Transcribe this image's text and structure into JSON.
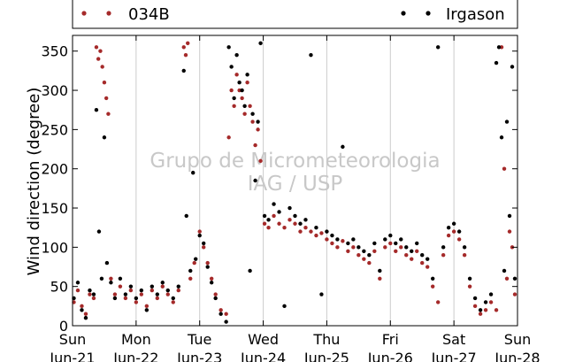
{
  "chart_data": {
    "type": "scatter",
    "title": "",
    "xlabel": "",
    "ylabel": "Wind direction (degree)",
    "ylim": [
      0,
      370
    ],
    "yticks": [
      0,
      50,
      100,
      150,
      200,
      250,
      300,
      350
    ],
    "xlim": [
      "2015-06-21 00:00",
      "2015-06-28 00:00"
    ],
    "xticks": [
      {
        "day": "Sun",
        "date": "Jun-21"
      },
      {
        "day": "Mon",
        "date": "Jun-22"
      },
      {
        "day": "Tue",
        "date": "Jun-23"
      },
      {
        "day": "Wed",
        "date": "Jun-24"
      },
      {
        "day": "Thu",
        "date": "Jun-25"
      },
      {
        "day": "Fri",
        "date": "Jun-26"
      },
      {
        "day": "Sat",
        "date": "Jun-27"
      },
      {
        "day": "Sun",
        "date": "Jun-28"
      }
    ],
    "grid": "vertical",
    "legend": "top",
    "watermark": [
      "Grupo de Micrometeorologia",
      "IAG / USP"
    ],
    "series": [
      {
        "name": "034B",
        "color": "#a52a2a",
        "marker": "dot",
        "points": [
          [
            "2015-06-21 00:30",
            30
          ],
          [
            "2015-06-21 02:00",
            45
          ],
          [
            "2015-06-21 03:30",
            25
          ],
          [
            "2015-06-21 05:00",
            15
          ],
          [
            "2015-06-21 06:30",
            40
          ],
          [
            "2015-06-21 08:00",
            35
          ],
          [
            "2015-06-21 09:00",
            355
          ],
          [
            "2015-06-21 09:45",
            340
          ],
          [
            "2015-06-21 10:30",
            350
          ],
          [
            "2015-06-21 11:15",
            330
          ],
          [
            "2015-06-21 12:00",
            310
          ],
          [
            "2015-06-21 12:45",
            290
          ],
          [
            "2015-06-21 13:30",
            270
          ],
          [
            "2015-06-21 14:30",
            60
          ],
          [
            "2015-06-21 16:00",
            40
          ],
          [
            "2015-06-21 18:00",
            50
          ],
          [
            "2015-06-21 20:00",
            35
          ],
          [
            "2015-06-21 22:00",
            45
          ],
          [
            "2015-06-22 00:00",
            30
          ],
          [
            "2015-06-22 02:00",
            40
          ],
          [
            "2015-06-22 04:00",
            25
          ],
          [
            "2015-06-22 06:00",
            45
          ],
          [
            "2015-06-22 08:00",
            35
          ],
          [
            "2015-06-22 10:00",
            50
          ],
          [
            "2015-06-22 12:00",
            40
          ],
          [
            "2015-06-22 14:00",
            30
          ],
          [
            "2015-06-22 16:00",
            45
          ],
          [
            "2015-06-22 18:00",
            355
          ],
          [
            "2015-06-22 18:45",
            345
          ],
          [
            "2015-06-22 19:30",
            360
          ],
          [
            "2015-06-22 20:30",
            60
          ],
          [
            "2015-06-22 22:00",
            80
          ],
          [
            "2015-06-23 00:00",
            120
          ],
          [
            "2015-06-23 01:30",
            100
          ],
          [
            "2015-06-23 03:00",
            80
          ],
          [
            "2015-06-23 04:30",
            60
          ],
          [
            "2015-06-23 06:00",
            40
          ],
          [
            "2015-06-23 08:00",
            20
          ],
          [
            "2015-06-23 10:00",
            15
          ],
          [
            "2015-06-23 11:00",
            240
          ],
          [
            "2015-06-23 12:00",
            300
          ],
          [
            "2015-06-23 13:00",
            280
          ],
          [
            "2015-06-23 14:00",
            320
          ],
          [
            "2015-06-23 15:00",
            300
          ],
          [
            "2015-06-23 16:00",
            290
          ],
          [
            "2015-06-23 17:00",
            270
          ],
          [
            "2015-06-23 18:00",
            310
          ],
          [
            "2015-06-23 19:00",
            280
          ],
          [
            "2015-06-23 20:00",
            260
          ],
          [
            "2015-06-23 21:00",
            230
          ],
          [
            "2015-06-23 22:00",
            250
          ],
          [
            "2015-06-23 23:00",
            210
          ],
          [
            "2015-06-24 00:30",
            130
          ],
          [
            "2015-06-24 02:00",
            125
          ],
          [
            "2015-06-24 04:00",
            140
          ],
          [
            "2015-06-24 06:00",
            130
          ],
          [
            "2015-06-24 08:00",
            125
          ],
          [
            "2015-06-24 10:00",
            135
          ],
          [
            "2015-06-24 12:00",
            130
          ],
          [
            "2015-06-24 14:00",
            120
          ],
          [
            "2015-06-24 16:00",
            125
          ],
          [
            "2015-06-24 18:00",
            120
          ],
          [
            "2015-06-24 20:00",
            115
          ],
          [
            "2015-06-24 22:00",
            118
          ],
          [
            "2015-06-25 00:00",
            110
          ],
          [
            "2015-06-25 02:00",
            105
          ],
          [
            "2015-06-25 04:00",
            100
          ],
          [
            "2015-06-25 06:00",
            108
          ],
          [
            "2015-06-25 08:00",
            95
          ],
          [
            "2015-06-25 10:00",
            100
          ],
          [
            "2015-06-25 12:00",
            90
          ],
          [
            "2015-06-25 14:00",
            85
          ],
          [
            "2015-06-25 16:00",
            80
          ],
          [
            "2015-06-25 18:00",
            95
          ],
          [
            "2015-06-25 20:00",
            60
          ],
          [
            "2015-06-25 22:00",
            100
          ],
          [
            "2015-06-26 00:00",
            105
          ],
          [
            "2015-06-26 02:00",
            95
          ],
          [
            "2015-06-26 04:00",
            100
          ],
          [
            "2015-06-26 06:00",
            90
          ],
          [
            "2015-06-26 08:00",
            85
          ],
          [
            "2015-06-26 10:00",
            95
          ],
          [
            "2015-06-26 12:00",
            80
          ],
          [
            "2015-06-26 14:00",
            75
          ],
          [
            "2015-06-26 16:00",
            50
          ],
          [
            "2015-06-26 18:00",
            30
          ],
          [
            "2015-06-26 20:00",
            90
          ],
          [
            "2015-06-26 22:00",
            115
          ],
          [
            "2015-06-27 00:00",
            120
          ],
          [
            "2015-06-27 02:00",
            110
          ],
          [
            "2015-06-27 04:00",
            90
          ],
          [
            "2015-06-27 06:00",
            50
          ],
          [
            "2015-06-27 08:00",
            25
          ],
          [
            "2015-06-27 10:00",
            15
          ],
          [
            "2015-06-27 12:00",
            20
          ],
          [
            "2015-06-27 14:00",
            30
          ],
          [
            "2015-06-27 16:00",
            20
          ],
          [
            "2015-06-27 18:00",
            355
          ],
          [
            "2015-06-27 19:00",
            200
          ],
          [
            "2015-06-27 20:00",
            60
          ],
          [
            "2015-06-27 21:00",
            120
          ],
          [
            "2015-06-27 22:00",
            100
          ],
          [
            "2015-06-27 23:00",
            40
          ]
        ]
      },
      {
        "name": "Irgason",
        "color": "#000000",
        "marker": "dot",
        "points": [
          [
            "2015-06-21 00:30",
            35
          ],
          [
            "2015-06-21 02:00",
            55
          ],
          [
            "2015-06-21 03:30",
            20
          ],
          [
            "2015-06-21 05:00",
            10
          ],
          [
            "2015-06-21 06:30",
            45
          ],
          [
            "2015-06-21 08:00",
            40
          ],
          [
            "2015-06-21 09:00",
            275
          ],
          [
            "2015-06-21 10:00",
            120
          ],
          [
            "2015-06-21 11:00",
            60
          ],
          [
            "2015-06-21 12:00",
            240
          ],
          [
            "2015-06-21 13:00",
            80
          ],
          [
            "2015-06-21 14:30",
            55
          ],
          [
            "2015-06-21 16:00",
            35
          ],
          [
            "2015-06-21 18:00",
            60
          ],
          [
            "2015-06-21 20:00",
            40
          ],
          [
            "2015-06-21 22:00",
            50
          ],
          [
            "2015-06-22 00:00",
            35
          ],
          [
            "2015-06-22 02:00",
            45
          ],
          [
            "2015-06-22 04:00",
            20
          ],
          [
            "2015-06-22 06:00",
            50
          ],
          [
            "2015-06-22 08:00",
            40
          ],
          [
            "2015-06-22 10:00",
            55
          ],
          [
            "2015-06-22 12:00",
            45
          ],
          [
            "2015-06-22 14:00",
            35
          ],
          [
            "2015-06-22 16:00",
            50
          ],
          [
            "2015-06-22 18:00",
            325
          ],
          [
            "2015-06-22 19:00",
            140
          ],
          [
            "2015-06-22 20:30",
            70
          ],
          [
            "2015-06-22 21:30",
            195
          ],
          [
            "2015-06-22 22:30",
            85
          ],
          [
            "2015-06-23 00:00",
            115
          ],
          [
            "2015-06-23 01:30",
            105
          ],
          [
            "2015-06-23 03:00",
            75
          ],
          [
            "2015-06-23 04:30",
            55
          ],
          [
            "2015-06-23 06:00",
            35
          ],
          [
            "2015-06-23 08:00",
            15
          ],
          [
            "2015-06-23 10:00",
            5
          ],
          [
            "2015-06-23 11:00",
            355
          ],
          [
            "2015-06-23 12:00",
            330
          ],
          [
            "2015-06-23 13:00",
            290
          ],
          [
            "2015-06-23 14:00",
            345
          ],
          [
            "2015-06-23 15:00",
            310
          ],
          [
            "2015-06-23 16:00",
            300
          ],
          [
            "2015-06-23 17:00",
            280
          ],
          [
            "2015-06-23 18:00",
            320
          ],
          [
            "2015-06-23 19:00",
            70
          ],
          [
            "2015-06-23 20:00",
            270
          ],
          [
            "2015-06-23 21:00",
            185
          ],
          [
            "2015-06-23 22:00",
            260
          ],
          [
            "2015-06-23 23:00",
            360
          ],
          [
            "2015-06-24 00:30",
            140
          ],
          [
            "2015-06-24 02:00",
            135
          ],
          [
            "2015-06-24 04:00",
            155
          ],
          [
            "2015-06-24 06:00",
            145
          ],
          [
            "2015-06-24 08:00",
            25
          ],
          [
            "2015-06-24 10:00",
            150
          ],
          [
            "2015-06-24 12:00",
            140
          ],
          [
            "2015-06-24 14:00",
            130
          ],
          [
            "2015-06-24 16:00",
            135
          ],
          [
            "2015-06-24 18:00",
            345
          ],
          [
            "2015-06-24 20:00",
            125
          ],
          [
            "2015-06-24 22:00",
            40
          ],
          [
            "2015-06-25 00:00",
            120
          ],
          [
            "2015-06-25 02:00",
            115
          ],
          [
            "2015-06-25 04:00",
            110
          ],
          [
            "2015-06-25 06:00",
            228
          ],
          [
            "2015-06-25 08:00",
            105
          ],
          [
            "2015-06-25 10:00",
            110
          ],
          [
            "2015-06-25 12:00",
            100
          ],
          [
            "2015-06-25 14:00",
            95
          ],
          [
            "2015-06-25 16:00",
            90
          ],
          [
            "2015-06-25 18:00",
            105
          ],
          [
            "2015-06-25 20:00",
            70
          ],
          [
            "2015-06-25 22:00",
            110
          ],
          [
            "2015-06-26 00:00",
            115
          ],
          [
            "2015-06-26 02:00",
            105
          ],
          [
            "2015-06-26 04:00",
            110
          ],
          [
            "2015-06-26 06:00",
            100
          ],
          [
            "2015-06-26 08:00",
            95
          ],
          [
            "2015-06-26 10:00",
            105
          ],
          [
            "2015-06-26 12:00",
            90
          ],
          [
            "2015-06-26 14:00",
            85
          ],
          [
            "2015-06-26 16:00",
            60
          ],
          [
            "2015-06-26 18:00",
            355
          ],
          [
            "2015-06-26 20:00",
            100
          ],
          [
            "2015-06-26 22:00",
            125
          ],
          [
            "2015-06-27 00:00",
            130
          ],
          [
            "2015-06-27 02:00",
            120
          ],
          [
            "2015-06-27 04:00",
            100
          ],
          [
            "2015-06-27 06:00",
            60
          ],
          [
            "2015-06-27 08:00",
            35
          ],
          [
            "2015-06-27 10:00",
            20
          ],
          [
            "2015-06-27 12:00",
            30
          ],
          [
            "2015-06-27 14:00",
            40
          ],
          [
            "2015-06-27 16:00",
            335
          ],
          [
            "2015-06-27 17:00",
            355
          ],
          [
            "2015-06-27 18:00",
            240
          ],
          [
            "2015-06-27 19:00",
            70
          ],
          [
            "2015-06-27 20:00",
            260
          ],
          [
            "2015-06-27 21:00",
            140
          ],
          [
            "2015-06-27 22:00",
            330
          ],
          [
            "2015-06-27 23:00",
            60
          ]
        ]
      }
    ]
  }
}
